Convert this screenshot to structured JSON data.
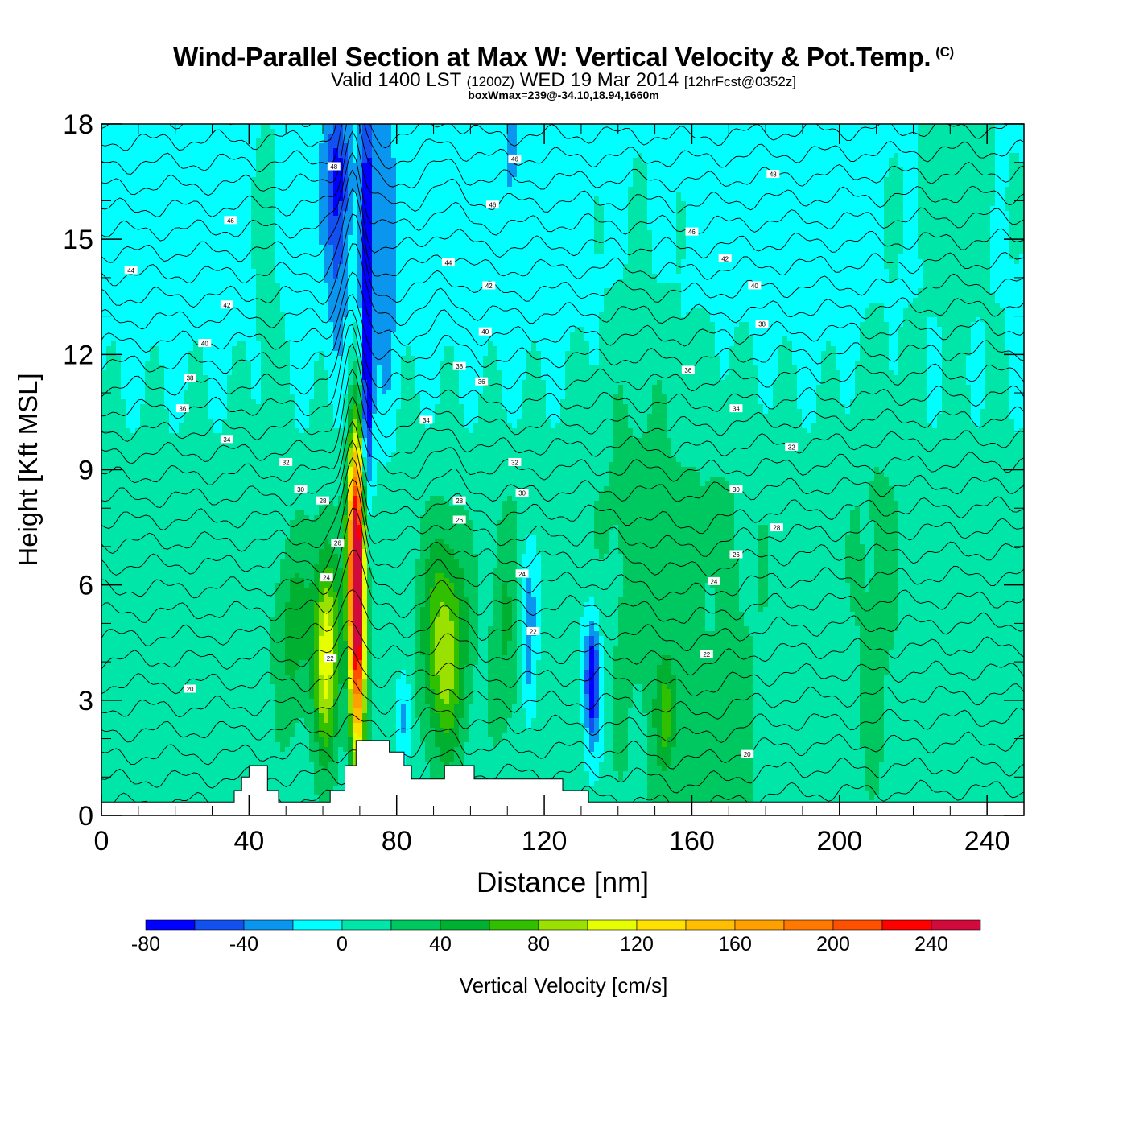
{
  "title": {
    "main": "Wind-Parallel Section at Max W: Vertical Velocity & Pot.Temp.",
    "copyright": "(C)",
    "valid_prefix": "Valid 1400 LST",
    "valid_utc": "(1200Z)",
    "valid_date": "WED 19 Mar 2014",
    "forecast": "[12hrFcst@0352z]",
    "subtitle": "boxWmax=239@-34.10,18.94,1660m"
  },
  "chart_data": {
    "type": "heatmap",
    "xlabel": "Distance [nm]",
    "ylabel": "Height [Kft MSL]",
    "xlim": [
      0,
      250
    ],
    "ylim": [
      0,
      18
    ],
    "xticks": [
      "0",
      "40",
      "80",
      "120",
      "160",
      "200",
      "240"
    ],
    "yticks": [
      "0",
      "3",
      "6",
      "9",
      "12",
      "15",
      "18"
    ],
    "colorbar": {
      "label": "Vertical Velocity [cm/s]",
      "tick_labels": [
        "-80",
        "-40",
        "0",
        "40",
        "80",
        "120",
        "160",
        "200",
        "240"
      ],
      "levels": [
        -80,
        -60,
        -40,
        -20,
        0,
        20,
        40,
        60,
        80,
        100,
        120,
        140,
        160,
        180,
        200,
        220,
        240,
        260
      ],
      "colors": [
        "#0000ff",
        "#1250f0",
        "#0a95ef",
        "#00ffff",
        "#00e6a8",
        "#00c860",
        "#00b030",
        "#30c000",
        "#9ae000",
        "#e6ff00",
        "#ffe000",
        "#ffbf00",
        "#ffa000",
        "#ff7800",
        "#ff5000",
        "#ff0000",
        "#d10a3c"
      ]
    },
    "background_value": 10,
    "upper_background_value": -10,
    "terrain_profile": [
      [
        0,
        0.35
      ],
      [
        36,
        0.35
      ],
      [
        36,
        0.65
      ],
      [
        38,
        0.65
      ],
      [
        38,
        1.0
      ],
      [
        40,
        1.0
      ],
      [
        40,
        1.3
      ],
      [
        45,
        1.3
      ],
      [
        45,
        0.65
      ],
      [
        48,
        0.65
      ],
      [
        48,
        0.35
      ],
      [
        62,
        0.35
      ],
      [
        62,
        0.65
      ],
      [
        66,
        0.65
      ],
      [
        66,
        1.3
      ],
      [
        69,
        1.3
      ],
      [
        69,
        1.95
      ],
      [
        78,
        1.95
      ],
      [
        78,
        1.65
      ],
      [
        82,
        1.65
      ],
      [
        82,
        1.3
      ],
      [
        84,
        1.3
      ],
      [
        84,
        0.95
      ],
      [
        93,
        0.95
      ],
      [
        93,
        1.3
      ],
      [
        101,
        1.3
      ],
      [
        101,
        0.95
      ],
      [
        125,
        0.95
      ],
      [
        125,
        0.65
      ],
      [
        132,
        0.65
      ],
      [
        132,
        0.35
      ],
      [
        250,
        0.35
      ]
    ],
    "w_features": [
      {
        "x": 69,
        "y": 6.8,
        "sx": 1.6,
        "sy": 2.4,
        "value": 225
      },
      {
        "x": 69.5,
        "y": 4.2,
        "sx": 1.5,
        "sy": 2.5,
        "value": 125
      },
      {
        "x": 61,
        "y": 4.3,
        "sx": 2.5,
        "sy": 1.9,
        "value": 105
      },
      {
        "x": 52,
        "y": 4.8,
        "sx": 3.5,
        "sy": 1.7,
        "value": 40
      },
      {
        "x": 93,
        "y": 4.4,
        "sx": 4.2,
        "sy": 2.0,
        "value": 85
      },
      {
        "x": 110,
        "y": 5.0,
        "sx": 3.0,
        "sy": 2.0,
        "value": 35
      },
      {
        "x": 153,
        "y": 2.6,
        "sx": 2.0,
        "sy": 1.0,
        "value": 45
      },
      {
        "x": 166,
        "y": 3.0,
        "sx": 10.0,
        "sy": 6.0,
        "value": 18
      },
      {
        "x": 145,
        "y": 9.0,
        "sx": 9.0,
        "sy": 6.0,
        "value": 18
      },
      {
        "x": 210,
        "y": 6.0,
        "sx": 5.0,
        "sy": 5.0,
        "value": 16
      },
      {
        "x": 232,
        "y": 16.0,
        "sx": 12.0,
        "sy": 2.5,
        "value": 20
      },
      {
        "x": 45,
        "y": 15.0,
        "sx": 3.0,
        "sy": 3.0,
        "value": 18
      },
      {
        "x": 72,
        "y": 14.0,
        "sx": 1.2,
        "sy": 4.0,
        "value": -70
      },
      {
        "x": 72,
        "y": 10.5,
        "sx": 1.0,
        "sy": 1.5,
        "value": -45
      },
      {
        "x": 64,
        "y": 16.8,
        "sx": 2.5,
        "sy": 1.2,
        "value": -45
      },
      {
        "x": 64,
        "y": 14.5,
        "sx": 2.0,
        "sy": 2.0,
        "value": -30
      },
      {
        "x": 77,
        "y": 14.5,
        "sx": 2.0,
        "sy": 3.0,
        "value": -30
      },
      {
        "x": 111,
        "y": 17.3,
        "sx": 1.0,
        "sy": 0.7,
        "value": -35
      },
      {
        "x": 133,
        "y": 3.5,
        "sx": 1.0,
        "sy": 0.9,
        "value": -85
      },
      {
        "x": 133,
        "y": 3.5,
        "sx": 2.8,
        "sy": 1.8,
        "value": -30
      },
      {
        "x": 115,
        "y": 5.6,
        "sx": 2.4,
        "sy": 1.0,
        "value": -35
      },
      {
        "x": 116,
        "y": 3.6,
        "sx": 1.5,
        "sy": 1.1,
        "value": -35
      },
      {
        "x": 82,
        "y": 2.5,
        "sx": 1.5,
        "sy": 0.9,
        "value": -40
      },
      {
        "x": 165,
        "y": 5.3,
        "sx": 0.6,
        "sy": 0.4,
        "value": -35
      }
    ],
    "theta_levels": [
      18,
      19,
      20,
      21,
      22,
      23,
      24,
      25,
      26,
      27,
      28,
      29,
      30,
      31,
      32,
      33,
      34,
      35,
      36,
      37,
      38,
      39,
      40,
      41,
      42,
      43,
      44,
      45,
      46,
      47,
      48,
      49,
      50,
      51
    ],
    "theta_labels": [
      {
        "x": 35,
        "y": 15.5,
        "text": "46"
      },
      {
        "x": 8,
        "y": 14.2,
        "text": "44"
      },
      {
        "x": 34,
        "y": 13.3,
        "text": "42"
      },
      {
        "x": 28,
        "y": 12.3,
        "text": "40"
      },
      {
        "x": 24,
        "y": 11.4,
        "text": "38"
      },
      {
        "x": 22,
        "y": 10.6,
        "text": "36"
      },
      {
        "x": 34,
        "y": 9.8,
        "text": "34"
      },
      {
        "x": 50,
        "y": 9.2,
        "text": "32"
      },
      {
        "x": 54,
        "y": 8.5,
        "text": "30"
      },
      {
        "x": 60,
        "y": 8.2,
        "text": "28"
      },
      {
        "x": 64,
        "y": 7.1,
        "text": "26"
      },
      {
        "x": 61,
        "y": 6.2,
        "text": "24"
      },
      {
        "x": 62,
        "y": 4.1,
        "text": "22"
      },
      {
        "x": 24,
        "y": 3.3,
        "text": "20"
      },
      {
        "x": 63,
        "y": 16.9,
        "text": "48"
      },
      {
        "x": 94,
        "y": 14.4,
        "text": "44"
      },
      {
        "x": 106,
        "y": 15.9,
        "text": "46"
      },
      {
        "x": 112,
        "y": 17.1,
        "text": "46"
      },
      {
        "x": 105,
        "y": 13.8,
        "text": "42"
      },
      {
        "x": 104,
        "y": 12.6,
        "text": "40"
      },
      {
        "x": 97,
        "y": 11.7,
        "text": "38"
      },
      {
        "x": 103,
        "y": 11.3,
        "text": "36"
      },
      {
        "x": 88,
        "y": 10.3,
        "text": "34"
      },
      {
        "x": 112,
        "y": 9.2,
        "text": "32"
      },
      {
        "x": 114,
        "y": 8.4,
        "text": "30"
      },
      {
        "x": 97,
        "y": 8.2,
        "text": "28"
      },
      {
        "x": 97,
        "y": 7.7,
        "text": "26"
      },
      {
        "x": 114,
        "y": 6.3,
        "text": "24"
      },
      {
        "x": 117,
        "y": 4.8,
        "text": "22"
      },
      {
        "x": 182,
        "y": 16.7,
        "text": "48"
      },
      {
        "x": 160,
        "y": 15.2,
        "text": "46"
      },
      {
        "x": 169,
        "y": 14.5,
        "text": "42"
      },
      {
        "x": 177,
        "y": 13.8,
        "text": "40"
      },
      {
        "x": 179,
        "y": 12.8,
        "text": "38"
      },
      {
        "x": 159,
        "y": 11.6,
        "text": "36"
      },
      {
        "x": 172,
        "y": 10.6,
        "text": "34"
      },
      {
        "x": 187,
        "y": 9.6,
        "text": "32"
      },
      {
        "x": 172,
        "y": 8.5,
        "text": "30"
      },
      {
        "x": 183,
        "y": 7.5,
        "text": "28"
      },
      {
        "x": 172,
        "y": 6.8,
        "text": "26"
      },
      {
        "x": 166,
        "y": 6.1,
        "text": "24"
      },
      {
        "x": 164,
        "y": 4.2,
        "text": "22"
      },
      {
        "x": 175,
        "y": 1.6,
        "text": "20"
      }
    ]
  }
}
